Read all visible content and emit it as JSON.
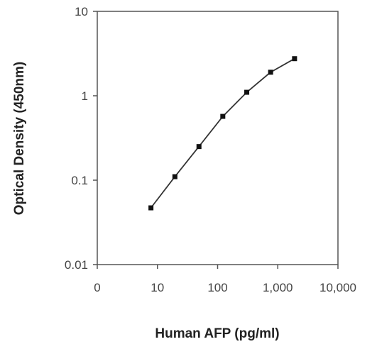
{
  "chart_data": {
    "type": "line",
    "title": "",
    "xlabel": "Human AFP (pg/ml)",
    "ylabel": "Optical Density (450nm)",
    "x_scale": "log",
    "y_scale": "log",
    "xlim": [
      1,
      10000
    ],
    "ylim": [
      0.01,
      10
    ],
    "x_ticks": [
      {
        "label": "0",
        "value": 1
      },
      {
        "label": "10",
        "value": 10
      },
      {
        "label": "100",
        "value": 100
      },
      {
        "label": "1,000",
        "value": 1000
      },
      {
        "label": "10,000",
        "value": 10000
      }
    ],
    "y_ticks": [
      {
        "label": "10",
        "value": 10
      },
      {
        "label": "1",
        "value": 1
      },
      {
        "label": "0.1",
        "value": 0.1
      },
      {
        "label": "0.01",
        "value": 0.01
      }
    ],
    "grid": false,
    "series": [
      {
        "color": "#333333",
        "points": [
          {
            "x": 7.8,
            "y": 0.047
          },
          {
            "x": 19.5,
            "y": 0.11
          },
          {
            "x": 49,
            "y": 0.25
          },
          {
            "x": 122,
            "y": 0.57
          },
          {
            "x": 305,
            "y": 1.1
          },
          {
            "x": 760,
            "y": 1.9
          },
          {
            "x": 1900,
            "y": 2.75
          }
        ]
      }
    ]
  }
}
